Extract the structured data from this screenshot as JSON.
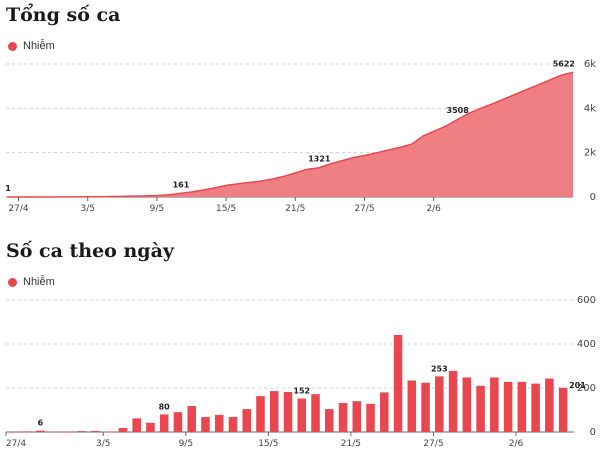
{
  "colors": {
    "series": "#e8474f",
    "area_fill": "#f07f83",
    "grid": "#cfcfcf",
    "axis": "#666666"
  },
  "chart_data": [
    {
      "type": "area",
      "title": "Tổng số ca",
      "series": [
        {
          "name": "Nhiễm",
          "values": [
            1,
            1,
            1,
            2,
            2,
            4,
            6,
            10,
            14,
            20,
            28,
            40,
            50,
            70,
            100,
            161,
            230,
            320,
            420,
            530,
            600,
            660,
            720,
            820,
            940,
            1100,
            1250,
            1321,
            1500,
            1640,
            1780,
            1880,
            2000,
            2120,
            2240,
            2380,
            2750,
            2980,
            3200,
            3508,
            3780,
            4000,
            4200,
            4420,
            4630,
            4850,
            5060,
            5280,
            5500,
            5622
          ]
        }
      ],
      "x_ticks": [
        "27/4",
        "3/5",
        "9/5",
        "15/5",
        "21/5",
        "27/5",
        "2/6"
      ],
      "y_ticks": [
        "0",
        "2k",
        "4k",
        "6k"
      ],
      "ylim": [
        0,
        6000
      ],
      "data_labels": [
        {
          "index": 0,
          "text": "1"
        },
        {
          "index": 15,
          "text": "161"
        },
        {
          "index": 27,
          "text": "1321"
        },
        {
          "index": 39,
          "text": "3508"
        },
        {
          "index": 49,
          "text": "5622"
        }
      ]
    },
    {
      "type": "bar",
      "title": "Số ca theo ngày",
      "series": [
        {
          "name": "Nhiễm",
          "values": [
            1,
            3,
            6,
            2,
            1,
            4,
            5,
            2,
            18,
            62,
            42,
            80,
            90,
            118,
            68,
            78,
            68,
            104,
            163,
            186,
            182,
            152,
            172,
            104,
            132,
            140,
            128,
            180,
            441,
            234,
            224,
            253,
            278,
            248,
            210,
            248,
            228,
            228,
            220,
            243,
            201
          ]
        }
      ],
      "x_ticks": [
        "27/4",
        "3/5",
        "9/5",
        "15/5",
        "21/5",
        "27/5",
        "2/6"
      ],
      "y_ticks": [
        "0",
        "200",
        "400",
        "600"
      ],
      "ylim": [
        0,
        600
      ],
      "data_labels": [
        {
          "index": 2,
          "text": "6"
        },
        {
          "index": 11,
          "text": "80"
        },
        {
          "index": 21,
          "text": "152"
        },
        {
          "index": 31,
          "text": "253"
        },
        {
          "index": 40,
          "text": "201"
        }
      ]
    }
  ]
}
